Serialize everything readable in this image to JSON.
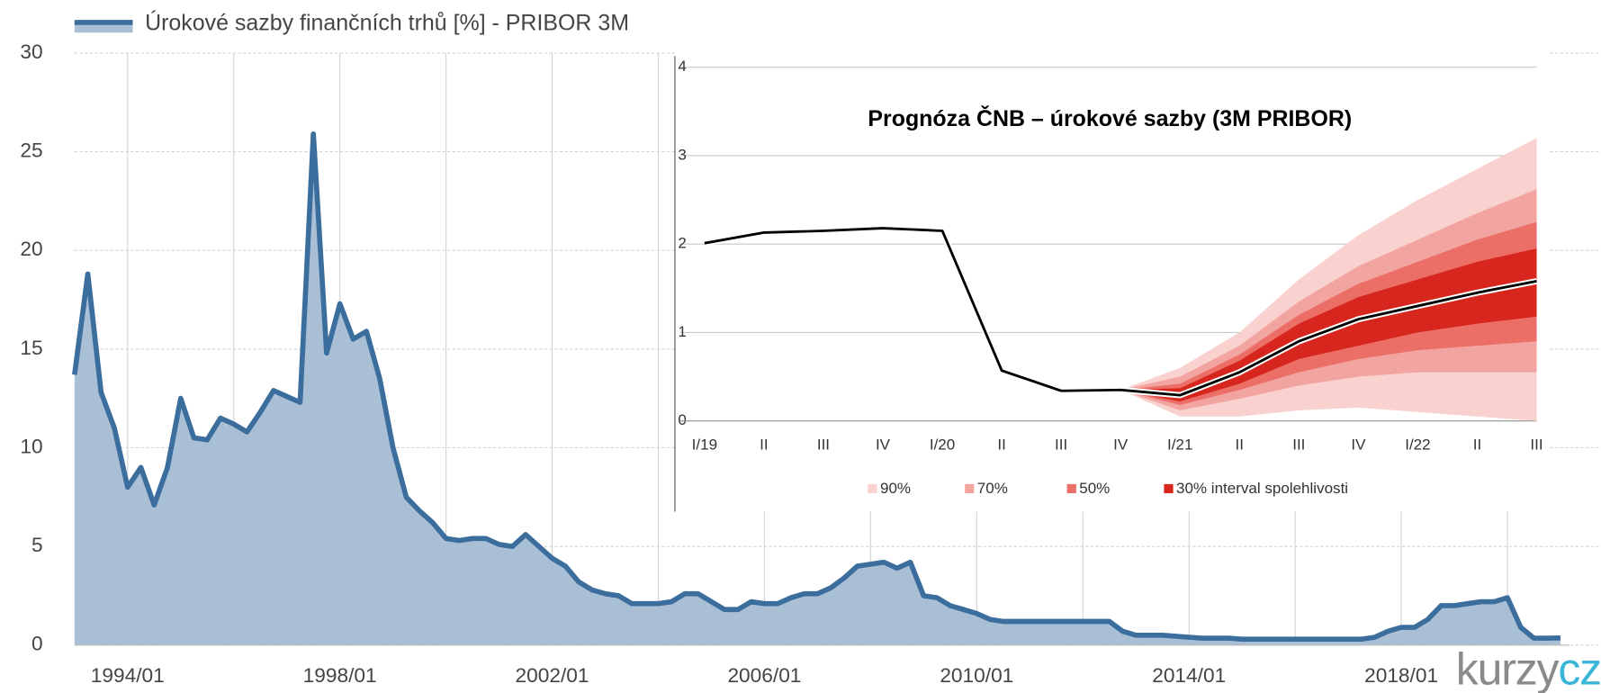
{
  "chart_data": [
    {
      "type": "area",
      "series": [
        {
          "name": "Úrokové sazby finančních trhů [%] - PRIBOR 3M",
          "color": "#3b6d9d",
          "fill": "#a9bfd6",
          "x": [
            "1993/01",
            "1993/04",
            "1993/07",
            "1993/10",
            "1994/01",
            "1994/04",
            "1994/07",
            "1994/10",
            "1995/01",
            "1995/04",
            "1995/07",
            "1995/10",
            "1996/01",
            "1996/04",
            "1996/07",
            "1996/10",
            "1997/01",
            "1997/04",
            "1997/07",
            "1997/10",
            "1998/01",
            "1998/04",
            "1998/07",
            "1998/10",
            "1999/01",
            "1999/04",
            "1999/07",
            "1999/10",
            "2000/01",
            "2000/04",
            "2000/07",
            "2000/10",
            "2001/01",
            "2001/04",
            "2001/07",
            "2001/10",
            "2002/01",
            "2002/04",
            "2002/07",
            "2002/10",
            "2003/01",
            "2003/04",
            "2003/07",
            "2003/10",
            "2004/01",
            "2004/04",
            "2004/07",
            "2004/10",
            "2005/01",
            "2005/04",
            "2005/07",
            "2005/10",
            "2006/01",
            "2006/04",
            "2006/07",
            "2006/10",
            "2007/01",
            "2007/04",
            "2007/07",
            "2007/10",
            "2008/01",
            "2008/04",
            "2008/07",
            "2008/10",
            "2009/01",
            "2009/04",
            "2009/07",
            "2009/10",
            "2010/01",
            "2010/04",
            "2010/07",
            "2010/10",
            "2011/01",
            "2011/04",
            "2011/07",
            "2011/10",
            "2012/01",
            "2012/04",
            "2012/07",
            "2012/10",
            "2013/01",
            "2013/04",
            "2013/07",
            "2013/10",
            "2014/01",
            "2014/04",
            "2014/07",
            "2014/10",
            "2015/01",
            "2015/04",
            "2015/07",
            "2015/10",
            "2016/01",
            "2016/04",
            "2016/07",
            "2016/10",
            "2017/01",
            "2017/04",
            "2017/07",
            "2017/10",
            "2018/01",
            "2018/04",
            "2018/07",
            "2018/10",
            "2019/01",
            "2019/04",
            "2019/07",
            "2019/10",
            "2020/01",
            "2020/04",
            "2020/07",
            "2020/10",
            "2021/01"
          ],
          "values": [
            13.7,
            18.8,
            12.8,
            11.0,
            8.0,
            9.0,
            7.1,
            9.0,
            12.5,
            10.5,
            10.4,
            11.5,
            11.2,
            10.8,
            11.8,
            12.9,
            12.6,
            12.3,
            25.9,
            14.8,
            17.3,
            15.5,
            15.9,
            13.5,
            10.0,
            7.5,
            6.8,
            6.2,
            5.4,
            5.3,
            5.4,
            5.4,
            5.1,
            5.0,
            5.6,
            5.0,
            4.4,
            4.0,
            3.2,
            2.8,
            2.6,
            2.5,
            2.1,
            2.1,
            2.1,
            2.2,
            2.6,
            2.6,
            2.2,
            1.8,
            1.8,
            2.2,
            2.1,
            2.1,
            2.4,
            2.6,
            2.6,
            2.9,
            3.4,
            4.0,
            4.1,
            4.2,
            3.9,
            4.2,
            2.5,
            2.4,
            2.0,
            1.8,
            1.6,
            1.3,
            1.2,
            1.2,
            1.2,
            1.2,
            1.2,
            1.2,
            1.2,
            1.2,
            1.2,
            0.7,
            0.5,
            0.5,
            0.5,
            0.45,
            0.4,
            0.35,
            0.35,
            0.35,
            0.3,
            0.3,
            0.3,
            0.3,
            0.3,
            0.3,
            0.3,
            0.3,
            0.3,
            0.3,
            0.4,
            0.7,
            0.9,
            0.9,
            1.3,
            2.0,
            2.0,
            2.1,
            2.2,
            2.2,
            2.4,
            0.9,
            0.35,
            0.35,
            0.36
          ]
        }
      ],
      "xlim": [
        "1993/01",
        "2021/03"
      ],
      "xticks": [
        "1994/01",
        "1998/01",
        "2002/01",
        "2006/01",
        "2010/01",
        "2014/01",
        "2018/01"
      ],
      "minor_xticks": [
        "1996/01",
        "2000/01",
        "2004/01",
        "2008/01",
        "2012/01",
        "2016/01",
        "2020/01"
      ],
      "ylim": [
        0,
        30
      ],
      "yticks": [
        0,
        5,
        10,
        15,
        20,
        25,
        30
      ],
      "grid": true,
      "logo": [
        "kurzy",
        "cz"
      ]
    },
    {
      "type": "fan",
      "title": "Prognóza ČNB – úrokové sazby (3M PRIBOR)",
      "categories": [
        "I/19",
        "II",
        "III",
        "IV",
        "I/20",
        "II",
        "III",
        "IV",
        "I/21",
        "II",
        "III",
        "IV",
        "I/22",
        "II",
        "III"
      ],
      "values": [
        2.01,
        2.13,
        2.15,
        2.18,
        2.15,
        0.57,
        0.34,
        0.35,
        0.29,
        0.55,
        0.9,
        1.15,
        1.3,
        1.45,
        1.58
      ],
      "color": "#000000",
      "bands": [
        {
          "name": "90%",
          "color": "#f9d1cf",
          "lower": [
            null,
            null,
            null,
            null,
            null,
            null,
            null,
            0.35,
            0.05,
            0.05,
            0.12,
            0.15,
            0.1,
            0.05,
            0.0
          ],
          "upper": [
            null,
            null,
            null,
            null,
            null,
            null,
            null,
            0.35,
            0.6,
            1.0,
            1.6,
            2.1,
            2.5,
            2.85,
            3.2
          ]
        },
        {
          "name": "70%",
          "color": "#f2a5a0",
          "lower": [
            null,
            null,
            null,
            null,
            null,
            null,
            null,
            0.35,
            0.12,
            0.25,
            0.4,
            0.5,
            0.55,
            0.55,
            0.55
          ],
          "upper": [
            null,
            null,
            null,
            null,
            null,
            null,
            null,
            0.35,
            0.5,
            0.85,
            1.35,
            1.75,
            2.05,
            2.35,
            2.62
          ]
        },
        {
          "name": "50%",
          "color": "#ec6f67",
          "lower": [
            null,
            null,
            null,
            null,
            null,
            null,
            null,
            0.35,
            0.18,
            0.35,
            0.55,
            0.7,
            0.8,
            0.85,
            0.9
          ],
          "upper": [
            null,
            null,
            null,
            null,
            null,
            null,
            null,
            0.35,
            0.42,
            0.75,
            1.2,
            1.55,
            1.8,
            2.05,
            2.25
          ]
        },
        {
          "name": "30% interval spolehlivosti",
          "color": "#d7261e",
          "lower": [
            null,
            null,
            null,
            null,
            null,
            null,
            null,
            0.35,
            0.22,
            0.42,
            0.7,
            0.85,
            1.0,
            1.1,
            1.18
          ],
          "upper": [
            null,
            null,
            null,
            null,
            null,
            null,
            null,
            0.35,
            0.37,
            0.68,
            1.1,
            1.4,
            1.6,
            1.8,
            1.95
          ]
        }
      ],
      "ylim": [
        0,
        4
      ],
      "yticks": [
        0,
        1,
        2,
        3,
        4
      ],
      "grid": true
    }
  ]
}
